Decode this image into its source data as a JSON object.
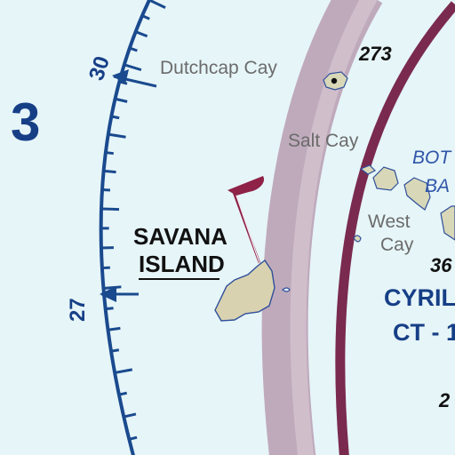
{
  "map": {
    "sector_number": "3",
    "compass": {
      "label_top": "30",
      "label_bottom": "27"
    },
    "places": {
      "dutchcap": "Dutchcap Cay",
      "salt": "Salt Cay",
      "west_line1": "West",
      "west_line2": "Cay",
      "savana_line1": "SAVANA",
      "savana_line2": "ISLAND",
      "partial_bot1": "BOT",
      "partial_bot2": "BA"
    },
    "elevations": {
      "dutchcap": "273",
      "right_edge": "36",
      "bottom_right": "2"
    },
    "vor": {
      "name": "CYRIL",
      "id": "CT - 1"
    },
    "colors": {
      "water": "#e6f5f8",
      "compass_rose": "#1a4a8e",
      "airspace_ring": "#7a2a4f",
      "airspace_band": "#b79cb1",
      "land": "#d8d8b8",
      "flag": "#8e2247"
    }
  }
}
